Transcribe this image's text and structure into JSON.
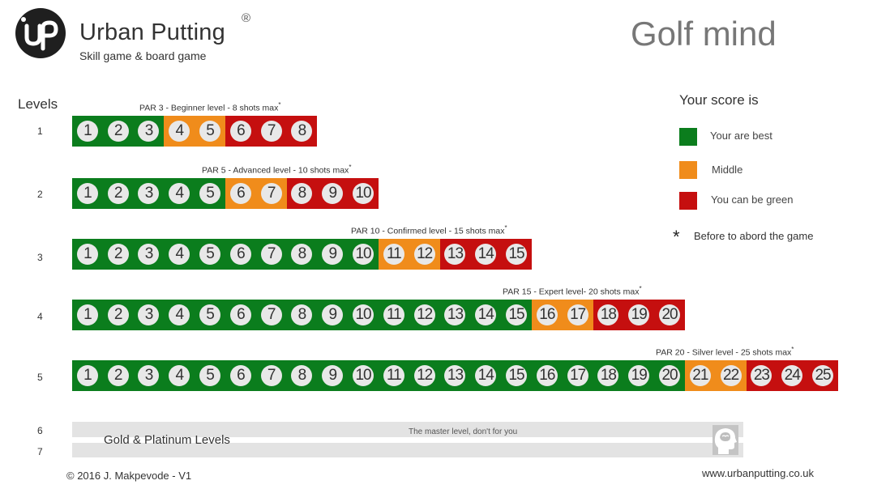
{
  "header": {
    "brand_name": "Urban Putting",
    "registered_mark": "®",
    "tagline": "Skill game & board game",
    "title": "Golf mind"
  },
  "levels_heading": "Levels",
  "levels": [
    {
      "number": "1",
      "caption": "PAR 3 - Beginner level - 8 shots max",
      "caption_mark": "*",
      "green": 3,
      "orange": 2,
      "red": 3
    },
    {
      "number": "2",
      "caption": "PAR 5 - Advanced level - 10 shots max",
      "caption_mark": "*",
      "green": 5,
      "orange": 2,
      "red": 3
    },
    {
      "number": "3",
      "caption": "PAR 10 - Confirmed level - 15 shots max",
      "caption_mark": "*",
      "green": 10,
      "orange": 2,
      "red": 3
    },
    {
      "number": "4",
      "caption": "PAR 15 - Expert level- 20 shots max",
      "caption_mark": "*",
      "green": 15,
      "orange": 2,
      "red": 3
    },
    {
      "number": "5",
      "caption": "PAR 20 - Silver level - 25 shots max",
      "caption_mark": "*",
      "green": 20,
      "orange": 2,
      "red": 3
    }
  ],
  "master": {
    "level_6": "6",
    "level_7": "7",
    "title": "Gold & Platinum Levels",
    "subtitle": "The master level, don't for you",
    "icon": "head-brain-icon"
  },
  "legend": {
    "title": "Your score is",
    "items": [
      {
        "label": "Your are best",
        "color": "#0b7d1d"
      },
      {
        "label": "Middle",
        "color": "#f08c1b"
      },
      {
        "label": "You can be green",
        "color": "#c50f0f"
      }
    ],
    "note_mark": "*",
    "note": "Before to abord the game"
  },
  "footer": {
    "copyright": "© 2016  J. Makpevode - V1",
    "website": "www.urbanputting.co.uk"
  }
}
